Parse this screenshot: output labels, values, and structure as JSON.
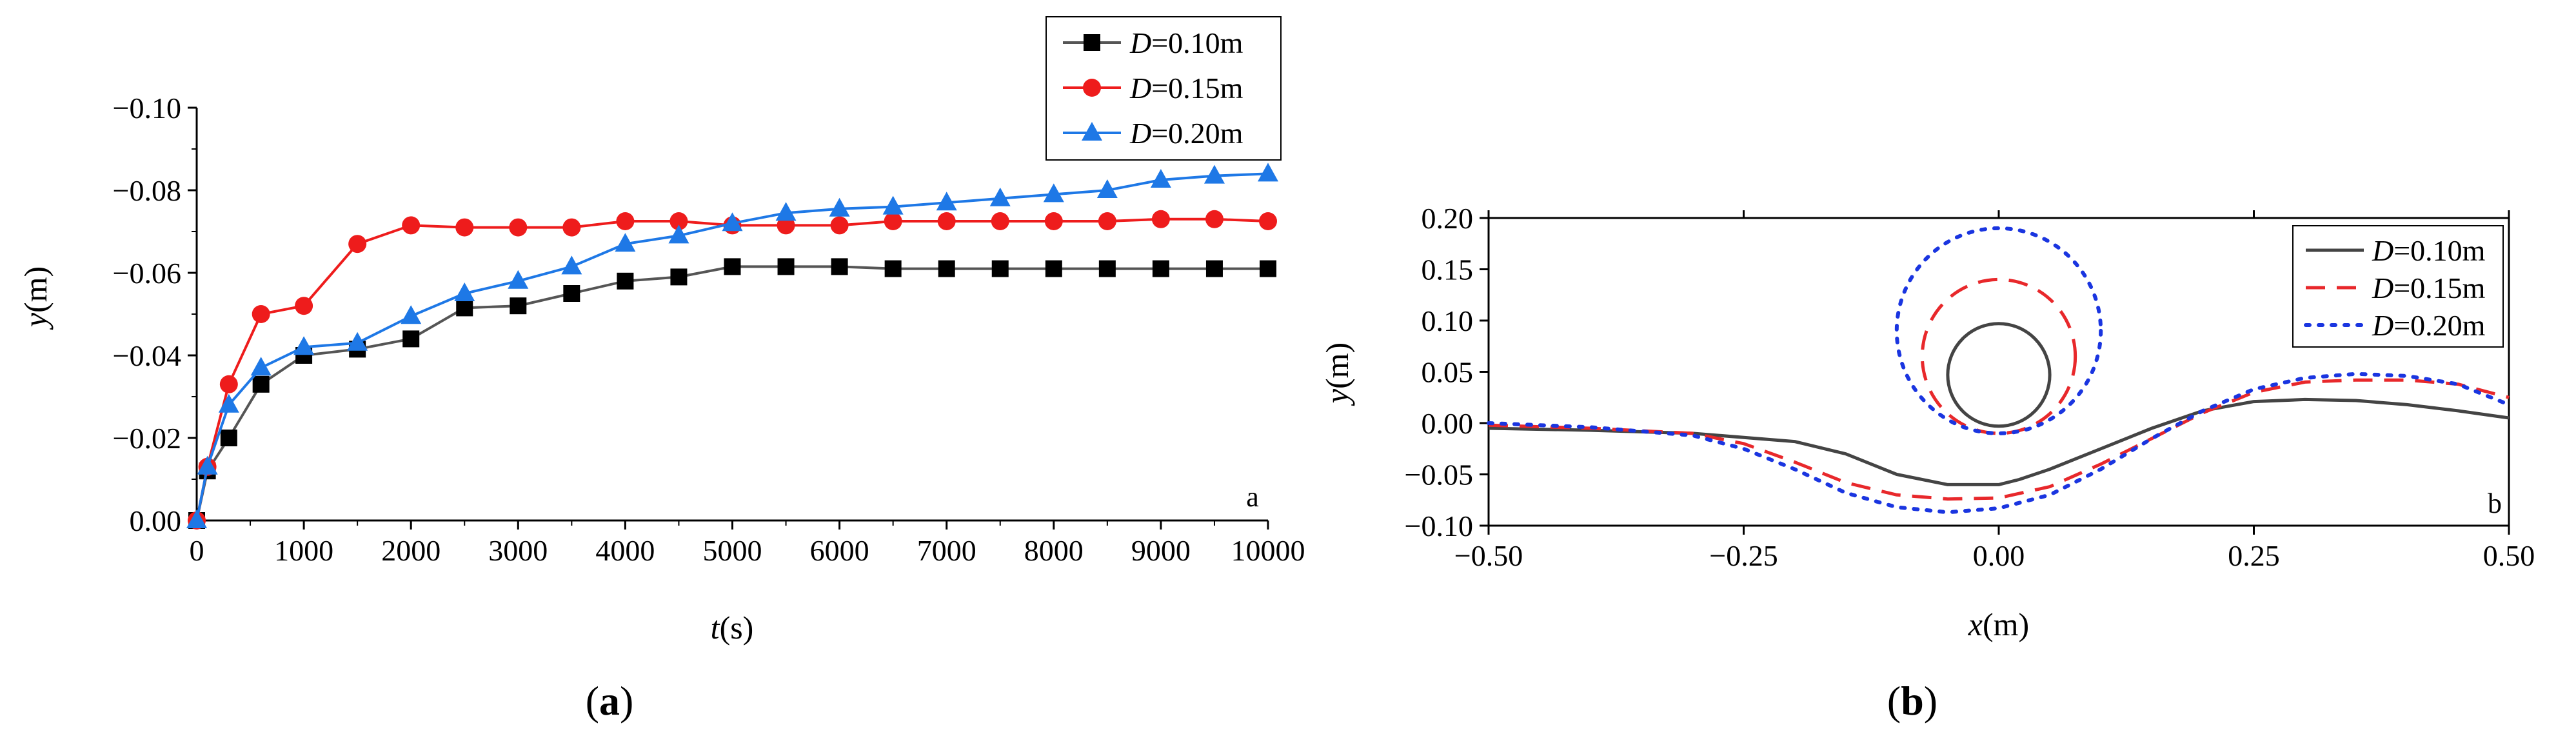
{
  "chart_data": [
    {
      "type": "line",
      "panel_tag": "a",
      "caption_letter": "a",
      "xlabel": {
        "italic": "t",
        "unit": "(s)"
      },
      "ylabel": {
        "italic": "y",
        "unit": "(m)"
      },
      "xlim": [
        0,
        10000
      ],
      "ylim": [
        0.0,
        -0.1
      ],
      "y_inverted": true,
      "x_ticks": [
        0,
        1000,
        2000,
        3000,
        4000,
        5000,
        6000,
        7000,
        8000,
        9000,
        10000
      ],
      "x_tick_labels": [
        "0",
        "1000",
        "2000",
        "3000",
        "4000",
        "5000",
        "6000",
        "7000",
        "8000",
        "9000",
        "10000"
      ],
      "y_ticks": [
        0.0,
        -0.02,
        -0.04,
        -0.06,
        -0.08,
        -0.1
      ],
      "y_tick_labels": [
        "0.00",
        "−0.02",
        "−0.04",
        "−0.06",
        "−0.08",
        "−0.10"
      ],
      "legend_position": "top-right",
      "series": [
        {
          "name": "D=0.10m",
          "name_italic": "D",
          "name_rest": "=0.10m",
          "color": "#000000",
          "line_color": "#555555",
          "marker": "square",
          "x": [
            0,
            100,
            300,
            600,
            1000,
            1500,
            2000,
            2500,
            3000,
            3500,
            4000,
            4500,
            5000,
            5500,
            6000,
            6500,
            7000,
            7500,
            8000,
            8500,
            9000,
            9500,
            10000
          ],
          "y": [
            0.0,
            -0.012,
            -0.02,
            -0.033,
            -0.04,
            -0.0415,
            -0.044,
            -0.0515,
            -0.052,
            -0.055,
            -0.058,
            -0.059,
            -0.0615,
            -0.0615,
            -0.0615,
            -0.061,
            -0.061,
            -0.061,
            -0.061,
            -0.061,
            -0.061,
            -0.061,
            -0.061
          ]
        },
        {
          "name": "D=0.15m",
          "name_italic": "D",
          "name_rest": "=0.15m",
          "color": "#ee1c1c",
          "line_color": "#ee1c1c",
          "marker": "circle",
          "x": [
            0,
            100,
            300,
            600,
            1000,
            1500,
            2000,
            2500,
            3000,
            3500,
            4000,
            4500,
            5000,
            5500,
            6000,
            6500,
            7000,
            7500,
            8000,
            8500,
            9000,
            9500,
            10000
          ],
          "y": [
            0.0,
            -0.013,
            -0.033,
            -0.05,
            -0.052,
            -0.067,
            -0.0715,
            -0.071,
            -0.071,
            -0.071,
            -0.0725,
            -0.0725,
            -0.0715,
            -0.0715,
            -0.0715,
            -0.0725,
            -0.0725,
            -0.0725,
            -0.0725,
            -0.0725,
            -0.073,
            -0.073,
            -0.0725
          ]
        },
        {
          "name": "D=0.20m",
          "name_italic": "D",
          "name_rest": "=0.20m",
          "color": "#1e78e6",
          "line_color": "#1e78e6",
          "marker": "triangle",
          "x": [
            0,
            100,
            300,
            600,
            1000,
            1500,
            2000,
            2500,
            3000,
            3500,
            4000,
            4500,
            5000,
            5500,
            6000,
            6500,
            7000,
            7500,
            8000,
            8500,
            9000,
            9500,
            10000
          ],
          "y": [
            0.0,
            -0.013,
            -0.028,
            -0.037,
            -0.042,
            -0.043,
            -0.0495,
            -0.055,
            -0.058,
            -0.0615,
            -0.067,
            -0.069,
            -0.072,
            -0.0745,
            -0.0755,
            -0.076,
            -0.077,
            -0.078,
            -0.079,
            -0.08,
            -0.0825,
            -0.0835,
            -0.084
          ]
        }
      ]
    },
    {
      "type": "line",
      "panel_tag": "b",
      "caption_letter": "b",
      "xlabel": {
        "italic": "x",
        "unit": "(m)"
      },
      "ylabel": {
        "italic": "y",
        "unit": "(m)"
      },
      "xlim": [
        -0.5,
        0.5
      ],
      "ylim": [
        -0.1,
        0.2
      ],
      "x_ticks": [
        -0.5,
        -0.25,
        0.0,
        0.25,
        0.5
      ],
      "x_tick_labels": [
        "−0.50",
        "−0.25",
        "0.00",
        "0.25",
        "0.50"
      ],
      "y_ticks": [
        -0.1,
        -0.05,
        0.0,
        0.05,
        0.1,
        0.15,
        0.2
      ],
      "y_tick_labels": [
        "−0.10",
        "−0.05",
        "0.00",
        "0.05",
        "0.10",
        "0.15",
        "0.20"
      ],
      "legend_position": "top-right",
      "series": [
        {
          "name": "D=0.10m",
          "name_italic": "D",
          "name_rest": "=0.10m",
          "color": "#444444",
          "dash": "solid",
          "pipe_diameter": 0.1,
          "pipe_center": [
            0.0,
            0.047
          ],
          "x": [
            -0.5,
            -0.4,
            -0.3,
            -0.2,
            -0.15,
            -0.1,
            -0.05,
            0.0,
            0.02,
            0.05,
            0.1,
            0.15,
            0.2,
            0.25,
            0.3,
            0.35,
            0.4,
            0.45,
            0.5
          ],
          "y": [
            -0.005,
            -0.007,
            -0.01,
            -0.018,
            -0.03,
            -0.05,
            -0.06,
            -0.06,
            -0.055,
            -0.045,
            -0.025,
            -0.005,
            0.012,
            0.021,
            0.023,
            0.022,
            0.018,
            0.012,
            0.005
          ]
        },
        {
          "name": "D=0.15m",
          "name_italic": "D",
          "name_rest": "=0.15m",
          "color": "#e8282b",
          "dash": "dashed",
          "pipe_diameter": 0.15,
          "pipe_center": [
            0.0,
            0.065
          ],
          "x": [
            -0.5,
            -0.4,
            -0.3,
            -0.25,
            -0.2,
            -0.15,
            -0.1,
            -0.05,
            0.0,
            0.05,
            0.1,
            0.15,
            0.2,
            0.25,
            0.3,
            0.35,
            0.4,
            0.45,
            0.5
          ],
          "y": [
            -0.002,
            -0.005,
            -0.01,
            -0.02,
            -0.038,
            -0.058,
            -0.07,
            -0.074,
            -0.073,
            -0.062,
            -0.04,
            -0.015,
            0.01,
            0.03,
            0.04,
            0.042,
            0.042,
            0.038,
            0.025
          ]
        },
        {
          "name": "D=0.20m",
          "name_italic": "D",
          "name_rest": "=0.20m",
          "color": "#1a35e0",
          "dash": "dotted",
          "pipe_diameter": 0.2,
          "pipe_center": [
            0.0,
            0.09
          ],
          "x": [
            -0.5,
            -0.4,
            -0.3,
            -0.25,
            -0.2,
            -0.15,
            -0.1,
            -0.05,
            0.0,
            0.05,
            0.1,
            0.15,
            0.2,
            0.25,
            0.3,
            0.35,
            0.4,
            0.45,
            0.5
          ],
          "y": [
            0.0,
            -0.004,
            -0.012,
            -0.025,
            -0.045,
            -0.068,
            -0.082,
            -0.087,
            -0.083,
            -0.07,
            -0.045,
            -0.015,
            0.012,
            0.033,
            0.044,
            0.048,
            0.046,
            0.038,
            0.018
          ]
        }
      ]
    }
  ]
}
